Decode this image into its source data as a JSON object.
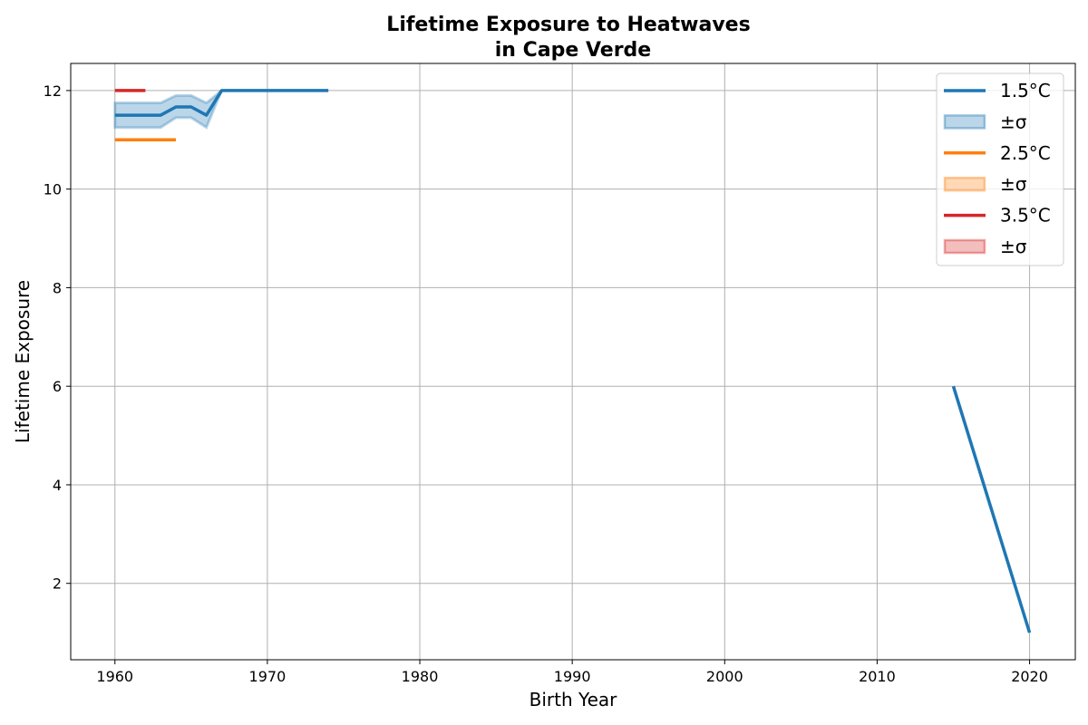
{
  "chart_data": {
    "type": "line",
    "title_line1": "Lifetime Exposure to Heatwaves",
    "title_line2": "in Cape Verde",
    "xlabel": "Birth Year",
    "ylabel": "Lifetime Exposure",
    "xlim": [
      1957.1,
      2023.0
    ],
    "ylim": [
      0.45,
      12.55
    ],
    "xticks": [
      1960,
      1970,
      1980,
      1990,
      2000,
      2010,
      2020
    ],
    "xtick_labels": [
      "1960",
      "1970",
      "1980",
      "1990",
      "2000",
      "2010",
      "2020"
    ],
    "yticks": [
      2,
      4,
      6,
      8,
      10,
      12
    ],
    "ytick_labels": [
      "2",
      "4",
      "6",
      "8",
      "10",
      "12"
    ],
    "grid": true,
    "legend_position": "top-right",
    "series": [
      {
        "name": "1.5°C",
        "band_name": "±σ",
        "color": "#1f77b4",
        "segments": [
          {
            "x": [
              1960,
              1961,
              1962,
              1963,
              1964,
              1965,
              1966,
              1967,
              1968,
              1969,
              1970,
              1971,
              1972,
              1973,
              1974
            ],
            "y": [
              11.5,
              11.5,
              11.5,
              11.5,
              11.667,
              11.667,
              11.5,
              12,
              12,
              12,
              12,
              12,
              12,
              12,
              12
            ]
          },
          {
            "x": [
              2015,
              2016,
              2017,
              2018,
              2019,
              2020
            ],
            "y": [
              6,
              5,
              4,
              3,
              2,
              1
            ]
          }
        ],
        "band": {
          "x": [
            1960,
            1961,
            1962,
            1963,
            1964,
            1965,
            1966,
            1967
          ],
          "lower": [
            11.25,
            11.25,
            11.25,
            11.25,
            11.45,
            11.45,
            11.25,
            12
          ],
          "upper": [
            11.75,
            11.75,
            11.75,
            11.75,
            11.9,
            11.9,
            11.75,
            12
          ]
        }
      },
      {
        "name": "2.5°C",
        "band_name": "±σ",
        "color": "#ff7f0e",
        "segments": [
          {
            "x": [
              1960,
              1961,
              1962,
              1963,
              1964
            ],
            "y": [
              11,
              11,
              11,
              11,
              11
            ]
          }
        ]
      },
      {
        "name": "3.5°C",
        "band_name": "±σ",
        "color": "#d62728",
        "segments": [
          {
            "x": [
              1960,
              1961,
              1962
            ],
            "y": [
              12,
              12,
              12
            ]
          }
        ]
      }
    ]
  }
}
